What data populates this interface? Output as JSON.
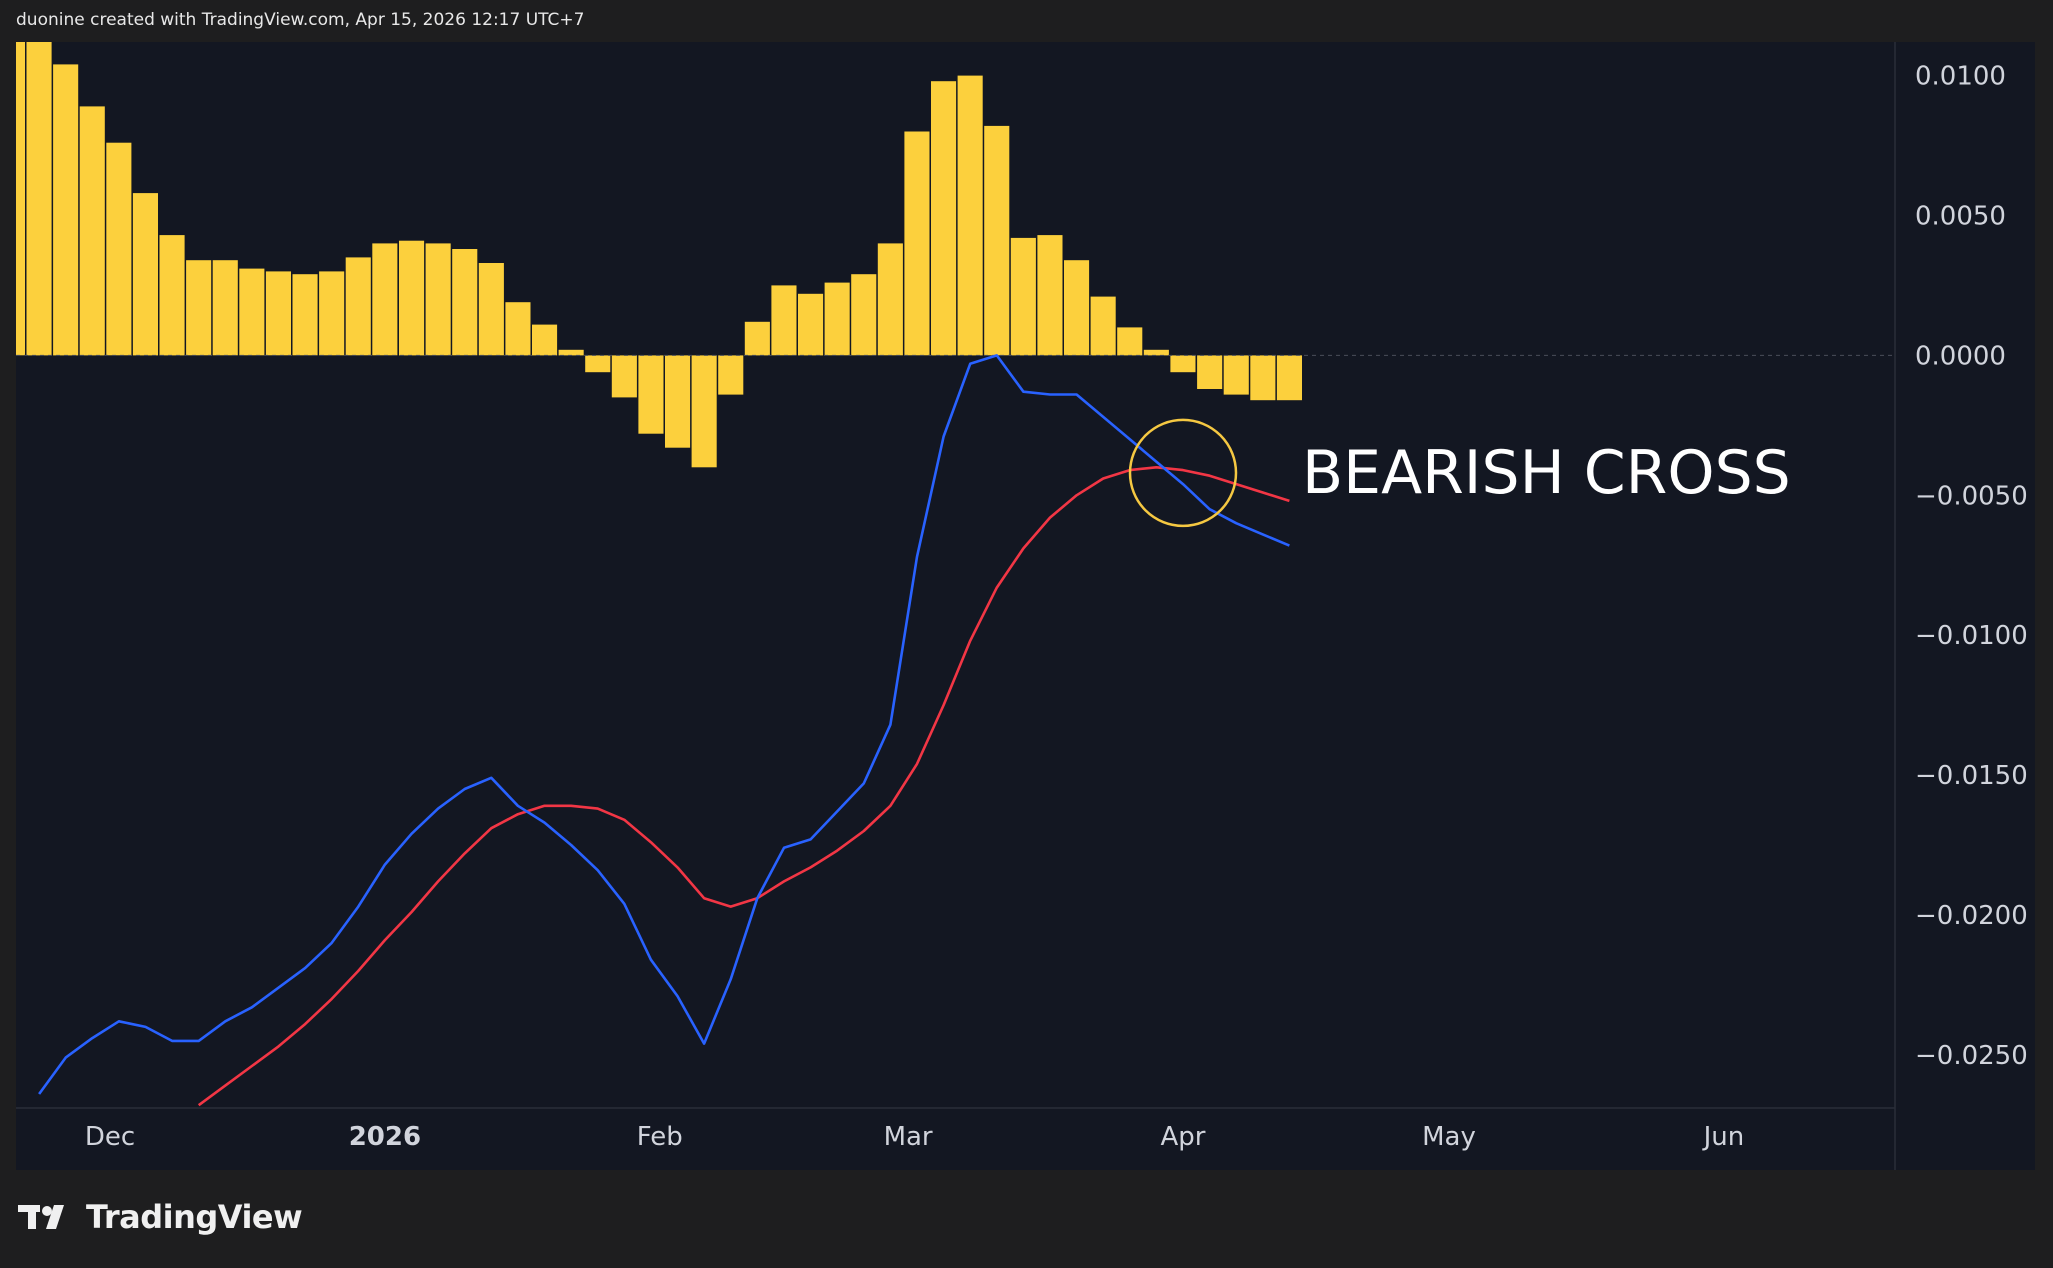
{
  "header": {
    "attribution": "duonine created with TradingView.com, Apr 15, 2026 12:17 UTC+7"
  },
  "footer": {
    "brand": "TradingView",
    "logo_icon": "tradingview-logo-icon"
  },
  "colors": {
    "background": "#131722",
    "frame": "#1e1e1f",
    "histogram": "#fcd03d",
    "macd_line": "#2962ff",
    "signal_line": "#f23645",
    "annotation_circle": "#f5c842",
    "annotation_text": "#ffffff",
    "axis_text": "#d1d4dc"
  },
  "chart_data": {
    "type": "bar",
    "y_axis": {
      "ticks": [
        "0.0100",
        "0.0050",
        "0.0000",
        "−0.0050",
        "−0.0100",
        "−0.0150",
        "−0.0200",
        "−0.0250"
      ],
      "tick_values": [
        0.01,
        0.005,
        0,
        -0.005,
        -0.01,
        -0.015,
        -0.02,
        -0.025
      ],
      "range": [
        -0.0269,
        0.0112
      ]
    },
    "x_axis": {
      "labels": [
        "Dec",
        "2026",
        "Feb",
        "Mar",
        "Apr",
        "May",
        "Jun"
      ],
      "bold_labels": [
        "2026"
      ],
      "label_dates": [
        "2025-12-01",
        "2026-01-01",
        "2026-02-01",
        "2026-03-01",
        "2026-04-01",
        "2026-05-01",
        "2026-06-01"
      ],
      "range": [
        "2025-11-24",
        "2026-06-24"
      ]
    },
    "dates": [
      "2025-11-20",
      "2025-11-23",
      "2025-11-26",
      "2025-11-29",
      "2025-12-02",
      "2025-12-05",
      "2025-12-08",
      "2025-12-11",
      "2025-12-14",
      "2025-12-17",
      "2025-12-20",
      "2025-12-23",
      "2025-12-26",
      "2025-12-29",
      "2026-01-01",
      "2026-01-04",
      "2026-01-07",
      "2026-01-10",
      "2026-01-13",
      "2026-01-16",
      "2026-01-19",
      "2026-01-22",
      "2026-01-25",
      "2026-01-28",
      "2026-01-31",
      "2026-02-03",
      "2026-02-06",
      "2026-02-09",
      "2026-02-12",
      "2026-02-15",
      "2026-02-18",
      "2026-02-21",
      "2026-02-24",
      "2026-02-27",
      "2026-03-02",
      "2026-03-05",
      "2026-03-08",
      "2026-03-11",
      "2026-03-14",
      "2026-03-17",
      "2026-03-20",
      "2026-03-23",
      "2026-03-26",
      "2026-03-29",
      "2026-04-01",
      "2026-04-04",
      "2026-04-07",
      "2026-04-10",
      "2026-04-13"
    ],
    "series": [
      {
        "type": "bar",
        "values": [
          0.0122,
          0.0112,
          0.0104,
          0.0089,
          0.0076,
          0.0058,
          0.0043,
          0.0034,
          0.0034,
          0.0031,
          0.003,
          0.0029,
          0.003,
          0.0035,
          0.004,
          0.0041,
          0.004,
          0.0038,
          0.0033,
          0.0019,
          0.0011,
          0.0002,
          -0.0006,
          -0.0015,
          -0.0028,
          -0.0033,
          -0.004,
          -0.0014,
          0.0012,
          0.0025,
          0.0022,
          0.0026,
          0.0029,
          0.004,
          0.008,
          0.0098,
          0.01,
          0.0082,
          0.0042,
          0.0043,
          0.0034,
          0.0021,
          0.001,
          0.0002,
          -0.0006,
          -0.0012,
          -0.0014,
          -0.0016,
          -0.0016
        ]
      },
      {
        "type": "line",
        "values": [
          null,
          -0.0264,
          -0.0251,
          -0.0244,
          -0.0238,
          -0.024,
          -0.0245,
          -0.0245,
          -0.0238,
          -0.0233,
          -0.0226,
          -0.0219,
          -0.021,
          -0.0197,
          -0.0182,
          -0.0171,
          -0.0162,
          -0.0155,
          -0.0151,
          -0.0161,
          -0.0167,
          -0.0175,
          -0.0184,
          -0.0196,
          -0.0216,
          -0.0229,
          -0.0246,
          -0.0223,
          -0.0194,
          -0.0176,
          -0.0173,
          -0.0163,
          -0.0153,
          -0.0132,
          -0.0072,
          -0.0029,
          -0.0003,
          0.0,
          -0.0013,
          -0.0014,
          -0.0014,
          -0.0022,
          -0.003,
          -0.0038,
          -0.0046,
          -0.0055,
          -0.006,
          -0.0064,
          -0.0068
        ]
      },
      {
        "type": "line",
        "values": [
          null,
          null,
          null,
          null,
          null,
          null,
          null,
          -0.0268,
          -0.0261,
          -0.0254,
          -0.0247,
          -0.0239,
          -0.023,
          -0.022,
          -0.0209,
          -0.0199,
          -0.0188,
          -0.0178,
          -0.0169,
          -0.0164,
          -0.0161,
          -0.0161,
          -0.0162,
          -0.0166,
          -0.0174,
          -0.0183,
          -0.0194,
          -0.0197,
          -0.0194,
          -0.0188,
          -0.0183,
          -0.0177,
          -0.017,
          -0.0161,
          -0.0146,
          -0.0125,
          -0.0102,
          -0.0083,
          -0.0069,
          -0.0058,
          -0.005,
          -0.0044,
          -0.0041,
          -0.004,
          -0.0041,
          -0.0043,
          -0.0046,
          -0.0049,
          -0.0052
        ]
      }
    ],
    "annotations": [
      {
        "text": "BEARISH CROSS",
        "marker": "circle",
        "date": "2026-04-01",
        "value": -0.0042
      }
    ],
    "zero_line": true,
    "grid": false
  }
}
